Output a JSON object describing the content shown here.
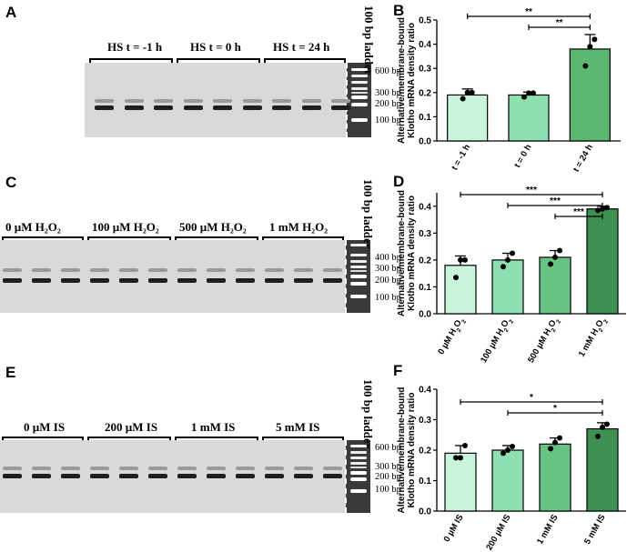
{
  "panel_letters": [
    "A",
    "B",
    "C",
    "D",
    "E",
    "F"
  ],
  "gels": [
    {
      "groups": [
        "HS t = -1 h",
        "HS t = 0 h",
        "HS t = 24 h"
      ],
      "ladder_title": [
        "100 bp",
        "ladder"
      ],
      "bp_labels": [
        "600 bp",
        "300 bp",
        "200 bp",
        "100 bp"
      ]
    },
    {
      "groups": [
        "0 µM H₂O₂",
        "100 µM H₂O₂",
        "500 µM H₂O₂",
        "1 mM H₂O₂"
      ],
      "ladder_title": [
        "100 bp",
        "ladder"
      ],
      "bp_labels": [
        "400 bp",
        "300 bp",
        "200 bp",
        "100 bp"
      ]
    },
    {
      "groups": [
        "0 µM IS",
        "200 µM IS",
        "1 mM  IS",
        "5 mM IS"
      ],
      "ladder_title": [
        "100 bp",
        "ladder"
      ],
      "bp_labels": [
        "600 bp",
        "300 bp",
        "200 bp",
        "100 bp"
      ]
    }
  ],
  "chart_data": [
    {
      "type": "bar",
      "ylabel": [
        "Alternative/membrane-bound",
        "Klotho mRNA density ratio"
      ],
      "ylim": [
        0,
        0.5
      ],
      "yticks": [
        "0.0",
        "0.1",
        "0.2",
        "0.3",
        "0.4",
        "0.5"
      ],
      "categories": [
        "t = -1 h",
        "t = 0 h",
        "t = 24 h"
      ],
      "values": [
        0.19,
        0.19,
        0.38
      ],
      "errors": [
        0.025,
        0.012,
        0.06
      ],
      "points": [
        [
          0.175,
          0.2,
          0.2
        ],
        [
          0.182,
          0.198,
          0.198
        ],
        [
          0.31,
          0.39,
          0.42
        ]
      ],
      "colors": [
        "#c8f5dc",
        "#8fe0b0",
        "#5cb870"
      ],
      "significance": [
        {
          "from": 0,
          "to": 2,
          "label": "**"
        },
        {
          "from": 1,
          "to": 2,
          "label": "**"
        }
      ],
      "grid": false
    },
    {
      "type": "bar",
      "ylabel": [
        "Alternative/membrane-bound",
        "Klotho mRNA density ratio"
      ],
      "ylim": [
        0,
        0.45
      ],
      "yticks": [
        "0.0",
        "0.1",
        "0.2",
        "0.3",
        "0.4"
      ],
      "categories": [
        "0 µM H₂O₂",
        "100 µM H₂O₂",
        "500 µM H₂O₂",
        "1 mM H₂O₂"
      ],
      "values": [
        0.18,
        0.2,
        0.21,
        0.39
      ],
      "errors": [
        0.035,
        0.025,
        0.025,
        0.01
      ],
      "points": [
        [
          0.135,
          0.2,
          0.2
        ],
        [
          0.175,
          0.2,
          0.225
        ],
        [
          0.185,
          0.21,
          0.235
        ],
        [
          0.385,
          0.39,
          0.395
        ]
      ],
      "colors": [
        "#c8f5dc",
        "#8fe0b0",
        "#66c384",
        "#3f8f52"
      ],
      "significance": [
        {
          "from": 0,
          "to": 3,
          "label": "***"
        },
        {
          "from": 1,
          "to": 3,
          "label": "***"
        },
        {
          "from": 2,
          "to": 3,
          "label": "***"
        }
      ],
      "grid": false
    },
    {
      "type": "bar",
      "ylabel": [
        "Alternative/membrane-bound",
        "Klotho mRNA density ratio"
      ],
      "ylim": [
        0,
        0.4
      ],
      "yticks": [
        "0.0",
        "0.1",
        "0.2",
        "0.3",
        "0.4"
      ],
      "categories": [
        "0 µM IS",
        "200 µM IS",
        "1 mM IS",
        "5 mM IS"
      ],
      "values": [
        0.19,
        0.2,
        0.22,
        0.27
      ],
      "errors": [
        0.025,
        0.015,
        0.02,
        0.02
      ],
      "points": [
        [
          0.175,
          0.175,
          0.215
        ],
        [
          0.19,
          0.2,
          0.212
        ],
        [
          0.205,
          0.225,
          0.24
        ],
        [
          0.245,
          0.275,
          0.285
        ]
      ],
      "colors": [
        "#c8f5dc",
        "#8fe0b0",
        "#66c384",
        "#3f8f52"
      ],
      "significance": [
        {
          "from": 0,
          "to": 3,
          "label": "*"
        },
        {
          "from": 1,
          "to": 3,
          "label": "*"
        }
      ],
      "grid": false
    }
  ]
}
